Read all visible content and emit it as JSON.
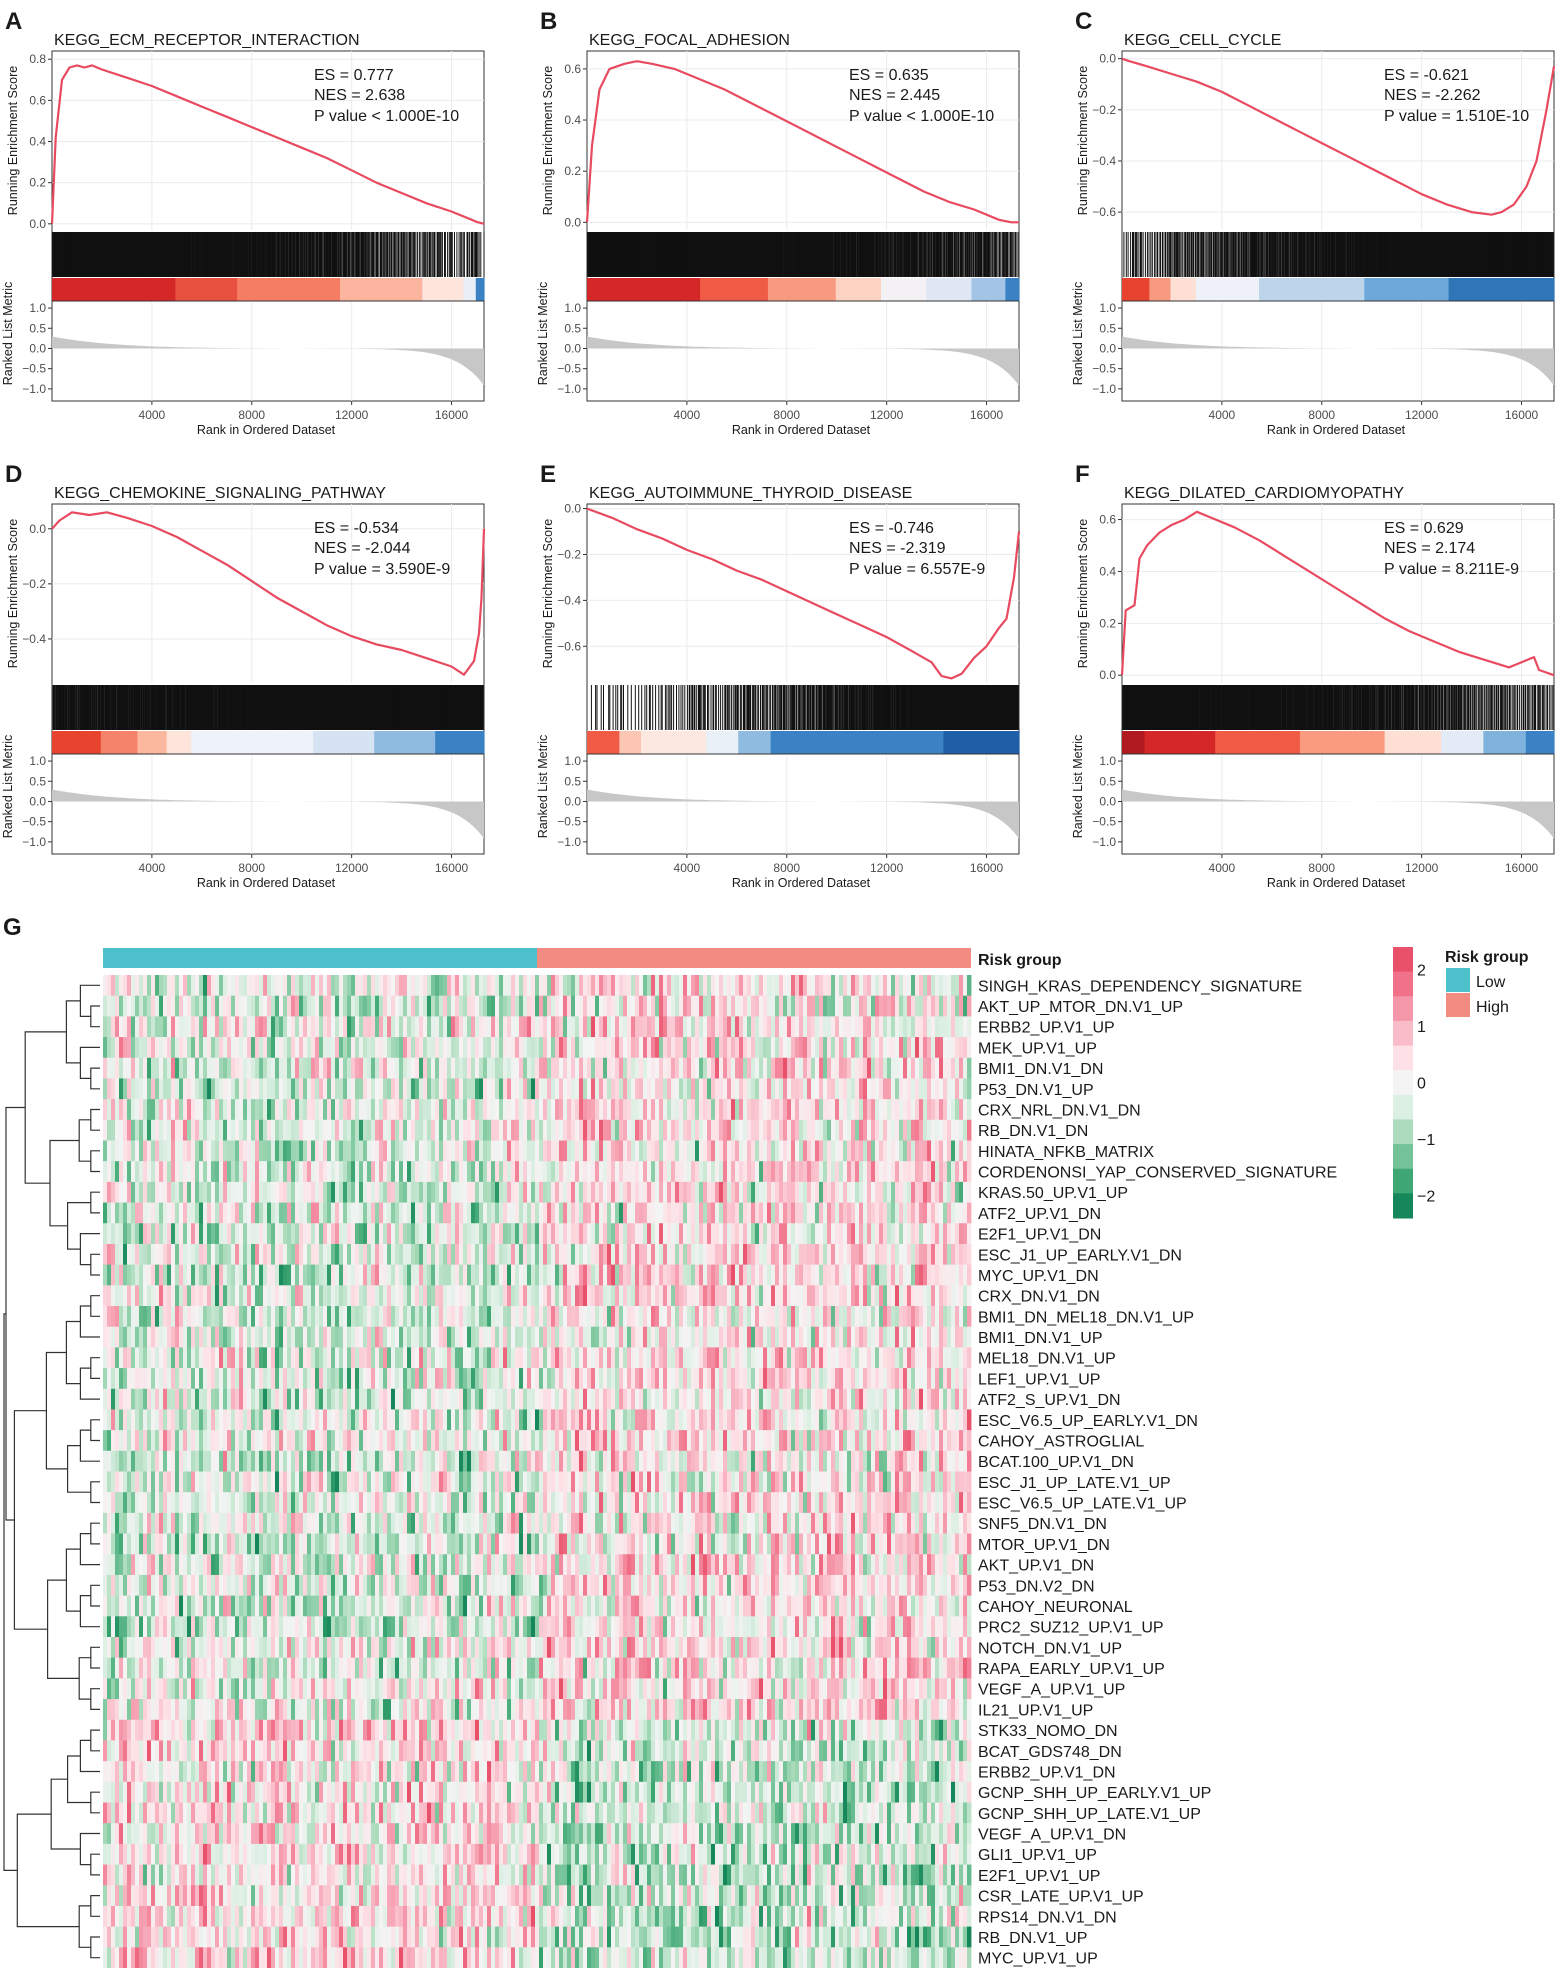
{
  "chart_data": {
    "type": "gsea_and_heatmap",
    "gsea_panels": [
      {
        "label": "A",
        "title": "KEGG_ECM_RECEPTOR_INTERACTION",
        "es_text": "ES = 0.777",
        "nes_text": "NES = 2.638",
        "p_text": "P value < 1.000E-10",
        "ylim": [
          -0.03,
          0.84
        ],
        "yticks": [
          0.0,
          0.2,
          0.4,
          0.6,
          0.8
        ],
        "ytick_labels": [
          "0.0",
          "0.2",
          "0.4",
          "0.6",
          "0.8"
        ],
        "curve": [
          [
            0,
            0.0
          ],
          [
            150,
            0.42
          ],
          [
            400,
            0.7
          ],
          [
            700,
            0.76
          ],
          [
            1000,
            0.77
          ],
          [
            1300,
            0.76
          ],
          [
            1600,
            0.77
          ],
          [
            2000,
            0.75
          ],
          [
            3000,
            0.71
          ],
          [
            4000,
            0.67
          ],
          [
            5000,
            0.62
          ],
          [
            6000,
            0.57
          ],
          [
            7000,
            0.52
          ],
          [
            8000,
            0.47
          ],
          [
            9000,
            0.42
          ],
          [
            10000,
            0.37
          ],
          [
            11000,
            0.32
          ],
          [
            12000,
            0.26
          ],
          [
            13000,
            0.2
          ],
          [
            14000,
            0.15
          ],
          [
            15000,
            0.1
          ],
          [
            16000,
            0.06
          ],
          [
            16800,
            0.02
          ],
          [
            17000,
            0.01
          ],
          [
            17300,
            0.0
          ]
        ],
        "hit_density": [
          3.5,
          1.8,
          0.5
        ],
        "heat_colors": [
          "#d62728",
          "#e85040",
          "#f47d64",
          "#fbb49e",
          "#fde5dc",
          "#e9eef7",
          "#3b82c4"
        ],
        "heat_widths": [
          6,
          3,
          5,
          4,
          2,
          0.6,
          0.4
        ]
      },
      {
        "label": "B",
        "title": "KEGG_FOCAL_ADHESION",
        "es_text": "ES = 0.635",
        "nes_text": "NES = 2.445",
        "p_text": "P value < 1.000E-10",
        "ylim": [
          -0.03,
          0.67
        ],
        "yticks": [
          0.0,
          0.2,
          0.4,
          0.6
        ],
        "ytick_labels": [
          "0.0",
          "0.2",
          "0.4",
          "0.6"
        ],
        "curve": [
          [
            0,
            0.0
          ],
          [
            200,
            0.3
          ],
          [
            500,
            0.52
          ],
          [
            900,
            0.6
          ],
          [
            1500,
            0.62
          ],
          [
            2000,
            0.63
          ],
          [
            2600,
            0.62
          ],
          [
            3500,
            0.6
          ],
          [
            4500,
            0.56
          ],
          [
            5500,
            0.52
          ],
          [
            6500,
            0.47
          ],
          [
            7500,
            0.42
          ],
          [
            8500,
            0.37
          ],
          [
            9500,
            0.32
          ],
          [
            10500,
            0.27
          ],
          [
            11500,
            0.22
          ],
          [
            12500,
            0.17
          ],
          [
            13500,
            0.12
          ],
          [
            14500,
            0.08
          ],
          [
            15500,
            0.05
          ],
          [
            16500,
            0.01
          ],
          [
            17000,
            0.0
          ],
          [
            17300,
            0.0
          ]
        ],
        "hit_density": [
          4.5,
          2.2,
          0.9
        ],
        "heat_colors": [
          "#d62728",
          "#ef5b44",
          "#f89a80",
          "#fcd3c3",
          "#f4f1f4",
          "#dfe7f4",
          "#a3c4e4",
          "#3b82c4"
        ],
        "heat_widths": [
          5,
          3,
          3,
          2,
          2,
          2,
          1.5,
          0.6
        ]
      },
      {
        "label": "C",
        "title": "KEGG_CELL_CYCLE",
        "es_text": "ES = -0.621",
        "nes_text": "NES = -2.262",
        "p_text": "P value = 1.510E-10",
        "ylim": [
          -0.67,
          0.03
        ],
        "yticks": [
          0.0,
          -0.2,
          -0.4,
          -0.6
        ],
        "ytick_labels": [
          "0.0",
          "−0.2",
          "−0.4",
          "−0.6"
        ],
        "curve": [
          [
            0,
            0.0
          ],
          [
            300,
            -0.01
          ],
          [
            1000,
            -0.03
          ],
          [
            2000,
            -0.06
          ],
          [
            3000,
            -0.09
          ],
          [
            4000,
            -0.13
          ],
          [
            5000,
            -0.18
          ],
          [
            6000,
            -0.23
          ],
          [
            7000,
            -0.28
          ],
          [
            8000,
            -0.33
          ],
          [
            9000,
            -0.38
          ],
          [
            10000,
            -0.43
          ],
          [
            11000,
            -0.48
          ],
          [
            12000,
            -0.53
          ],
          [
            13000,
            -0.57
          ],
          [
            14000,
            -0.6
          ],
          [
            14800,
            -0.61
          ],
          [
            15200,
            -0.6
          ],
          [
            15700,
            -0.57
          ],
          [
            16200,
            -0.5
          ],
          [
            16600,
            -0.4
          ],
          [
            17000,
            -0.2
          ],
          [
            17300,
            -0.03
          ]
        ],
        "hit_density": [
          0.6,
          1.8,
          4.5
        ],
        "heat_colors": [
          "#e8432e",
          "#f89a80",
          "#fde0d3",
          "#eef1f8",
          "#bcd5ea",
          "#6ea8d8",
          "#2f76b9"
        ],
        "heat_widths": [
          1.3,
          1,
          1.2,
          3,
          5,
          4,
          5
        ]
      },
      {
        "label": "D",
        "title": "KEGG_CHEMOKINE_SIGNALING_PATHWAY",
        "es_text": "ES = -0.534",
        "nes_text": "NES = -2.044",
        "p_text": "P value = 3.590E-9",
        "ylim": [
          -0.56,
          0.09
        ],
        "yticks": [
          0.0,
          -0.2,
          -0.4
        ],
        "ytick_labels": [
          "0.0",
          "−0.2",
          "−0.4"
        ],
        "curve": [
          [
            0,
            0.0
          ],
          [
            300,
            0.03
          ],
          [
            800,
            0.06
          ],
          [
            1500,
            0.05
          ],
          [
            2200,
            0.06
          ],
          [
            3000,
            0.04
          ],
          [
            4000,
            0.01
          ],
          [
            5000,
            -0.03
          ],
          [
            6000,
            -0.08
          ],
          [
            7000,
            -0.13
          ],
          [
            8000,
            -0.19
          ],
          [
            9000,
            -0.25
          ],
          [
            10000,
            -0.3
          ],
          [
            11000,
            -0.35
          ],
          [
            12000,
            -0.39
          ],
          [
            13000,
            -0.42
          ],
          [
            14000,
            -0.44
          ],
          [
            15000,
            -0.47
          ],
          [
            16000,
            -0.5
          ],
          [
            16500,
            -0.53
          ],
          [
            16900,
            -0.48
          ],
          [
            17100,
            -0.38
          ],
          [
            17200,
            -0.25
          ],
          [
            17300,
            0.0
          ]
        ],
        "hit_density": [
          1.5,
          2.4,
          3.2
        ],
        "heat_colors": [
          "#e8432e",
          "#f4836a",
          "#fbb89f",
          "#fde5dc",
          "#eef2f9",
          "#d5e3f2",
          "#8fbbe1",
          "#3b82c4"
        ],
        "heat_widths": [
          2,
          1.5,
          1.2,
          1,
          5,
          2.5,
          2.5,
          2
        ]
      },
      {
        "label": "E",
        "title": "KEGG_AUTOIMMUNE_THYROID_DISEASE",
        "es_text": "ES = -0.746",
        "nes_text": "NES = -2.319",
        "p_text": "P value = 6.557E-9",
        "ylim": [
          -0.76,
          0.02
        ],
        "yticks": [
          0.0,
          -0.2,
          -0.4,
          -0.6
        ],
        "ytick_labels": [
          "0.0",
          "−0.2",
          "−0.4",
          "−0.6"
        ],
        "curve": [
          [
            0,
            0.0
          ],
          [
            1000,
            -0.04
          ],
          [
            2000,
            -0.09
          ],
          [
            3000,
            -0.13
          ],
          [
            4000,
            -0.18
          ],
          [
            5000,
            -0.22
          ],
          [
            6000,
            -0.27
          ],
          [
            7000,
            -0.31
          ],
          [
            8000,
            -0.36
          ],
          [
            9000,
            -0.41
          ],
          [
            10000,
            -0.46
          ],
          [
            11000,
            -0.51
          ],
          [
            12000,
            -0.56
          ],
          [
            13000,
            -0.62
          ],
          [
            13800,
            -0.67
          ],
          [
            14200,
            -0.73
          ],
          [
            14600,
            -0.74
          ],
          [
            15000,
            -0.72
          ],
          [
            15500,
            -0.65
          ],
          [
            16000,
            -0.6
          ],
          [
            16500,
            -0.52
          ],
          [
            16800,
            -0.48
          ],
          [
            17100,
            -0.3
          ],
          [
            17300,
            -0.1
          ]
        ],
        "hit_density": [
          0.25,
          1.0,
          3.0
        ],
        "heat_colors": [
          "#ef5b44",
          "#fbc7b4",
          "#fde8df",
          "#eaf0f8",
          "#8fbbe1",
          "#3b82c4",
          "#1f5fa8"
        ],
        "heat_widths": [
          1.5,
          1,
          3,
          1.5,
          1.5,
          8,
          3.5
        ]
      },
      {
        "label": "F",
        "title": "KEGG_DILATED_CARDIOMYOPATHY",
        "es_text": "ES = 0.629",
        "nes_text": "NES = 2.174",
        "p_text": "P value = 8.211E-9",
        "ylim": [
          -0.03,
          0.66
        ],
        "yticks": [
          0.0,
          0.2,
          0.4,
          0.6
        ],
        "ytick_labels": [
          "0.0",
          "0.2",
          "0.4",
          "0.6"
        ],
        "curve": [
          [
            0,
            0.0
          ],
          [
            150,
            0.25
          ],
          [
            500,
            0.27
          ],
          [
            700,
            0.45
          ],
          [
            1000,
            0.5
          ],
          [
            1500,
            0.55
          ],
          [
            2000,
            0.58
          ],
          [
            2500,
            0.6
          ],
          [
            3000,
            0.63
          ],
          [
            3500,
            0.61
          ],
          [
            4500,
            0.57
          ],
          [
            5500,
            0.52
          ],
          [
            6500,
            0.46
          ],
          [
            7500,
            0.4
          ],
          [
            8500,
            0.34
          ],
          [
            9500,
            0.28
          ],
          [
            10500,
            0.22
          ],
          [
            11500,
            0.17
          ],
          [
            12500,
            0.13
          ],
          [
            13500,
            0.09
          ],
          [
            14500,
            0.06
          ],
          [
            15500,
            0.03
          ],
          [
            16500,
            0.07
          ],
          [
            16700,
            0.02
          ],
          [
            17300,
            0.0
          ]
        ],
        "hit_density": [
          3.0,
          1.8,
          0.6
        ],
        "heat_colors": [
          "#b0191f",
          "#d62728",
          "#ef5b44",
          "#fa9a7e",
          "#fde0d3",
          "#e3ebf6",
          "#7fb3dd",
          "#3b82c4"
        ],
        "heat_widths": [
          0.8,
          2.5,
          3,
          3,
          2,
          1.5,
          1.5,
          1
        ]
      }
    ],
    "gsea_x": {
      "label": "Rank in Ordered Dataset",
      "ticks": [
        4000,
        8000,
        12000,
        16000
      ],
      "tick_labels": [
        "4000",
        "8000",
        "12000",
        "16000"
      ],
      "max_rank": 17300
    },
    "gsea_y_label_top": "Running Enrichment Score",
    "gsea_y_label_bottom": "Ranked List Metric",
    "metric_y": {
      "ticks": [
        1.0,
        0.5,
        0.0,
        -0.5,
        -1.0
      ],
      "tick_labels": [
        "1.0",
        "0.5",
        "0.0",
        "−0.5",
        "−1.0"
      ]
    },
    "heatmap": {
      "panel_label": "G",
      "annotation_label": "Risk group",
      "rows": [
        "SINGH_KRAS_DEPENDENCY_SIGNATURE",
        "AKT_UP_MTOR_DN.V1_UP",
        "ERBB2_UP.V1_UP",
        "MEK_UP.V1_UP",
        "BMI1_DN.V1_DN",
        "P53_DN.V1_UP",
        "CRX_NRL_DN.V1_DN",
        "RB_DN.V1_DN",
        "HINATA_NFKB_MATRIX",
        "CORDENONSI_YAP_CONSERVED_SIGNATURE",
        "KRAS.50_UP.V1_UP",
        "ATF2_UP.V1_DN",
        "E2F1_UP.V1_DN",
        "ESC_J1_UP_EARLY.V1_DN",
        "MYC_UP.V1_DN",
        "CRX_DN.V1_DN",
        "BMI1_DN_MEL18_DN.V1_UP",
        "BMI1_DN.V1_UP",
        "MEL18_DN.V1_UP",
        "LEF1_UP.V1_UP",
        "ATF2_S_UP.V1_DN",
        "ESC_V6.5_UP_EARLY.V1_DN",
        "CAHOY_ASTROGLIAL",
        "BCAT.100_UP.V1_DN",
        "ESC_J1_UP_LATE.V1_UP",
        "ESC_V6.5_UP_LATE.V1_UP",
        "SNF5_DN.V1_DN",
        "MTOR_UP.V1_DN",
        "AKT_UP.V1_DN",
        "P53_DN.V2_DN",
        "CAHOY_NEURONAL",
        "PRC2_SUZ12_UP.V1_UP",
        "NOTCH_DN.V1_UP",
        "RAPA_EARLY_UP.V1_UP",
        "VEGF_A_UP.V1_UP",
        "IL21_UP.V1_UP",
        "STK33_NOMO_DN",
        "BCAT_GDS748_DN",
        "ERBB2_UP.V1_DN",
        "GCNP_SHH_UP_EARLY.V1_UP",
        "GCNP_SHH_UP_LATE.V1_UP",
        "VEGF_A_UP.V1_DN",
        "GLI1_UP.V1_UP",
        "E2F1_UP.V1_UP",
        "CSR_LATE_UP.V1_UP",
        "RPS14_DN.V1_DN",
        "RB_DN.V1_UP",
        "MYC_UP.V1_UP"
      ],
      "groups": [
        {
          "name": "Low",
          "fraction": 0.5,
          "color": "#4cc1cc"
        },
        {
          "name": "High",
          "fraction": 0.5,
          "color": "#f28b82"
        }
      ],
      "legend_title": "Risk group",
      "legend_items": [
        "Low",
        "High"
      ],
      "colorbar": {
        "range": [
          -2.4,
          2.4
        ],
        "ticks": [
          2,
          1,
          0,
          -1,
          -2
        ],
        "tick_labels": [
          "2",
          "1",
          "0",
          "−1",
          "−2"
        ],
        "colors": [
          "#e9506a",
          "#f07189",
          "#f597aa",
          "#f9bcc8",
          "#fde1e6",
          "#f4f4f4",
          "#dcefe3",
          "#acdcbd",
          "#74c398",
          "#3ea773",
          "#16875a"
        ]
      }
    }
  }
}
